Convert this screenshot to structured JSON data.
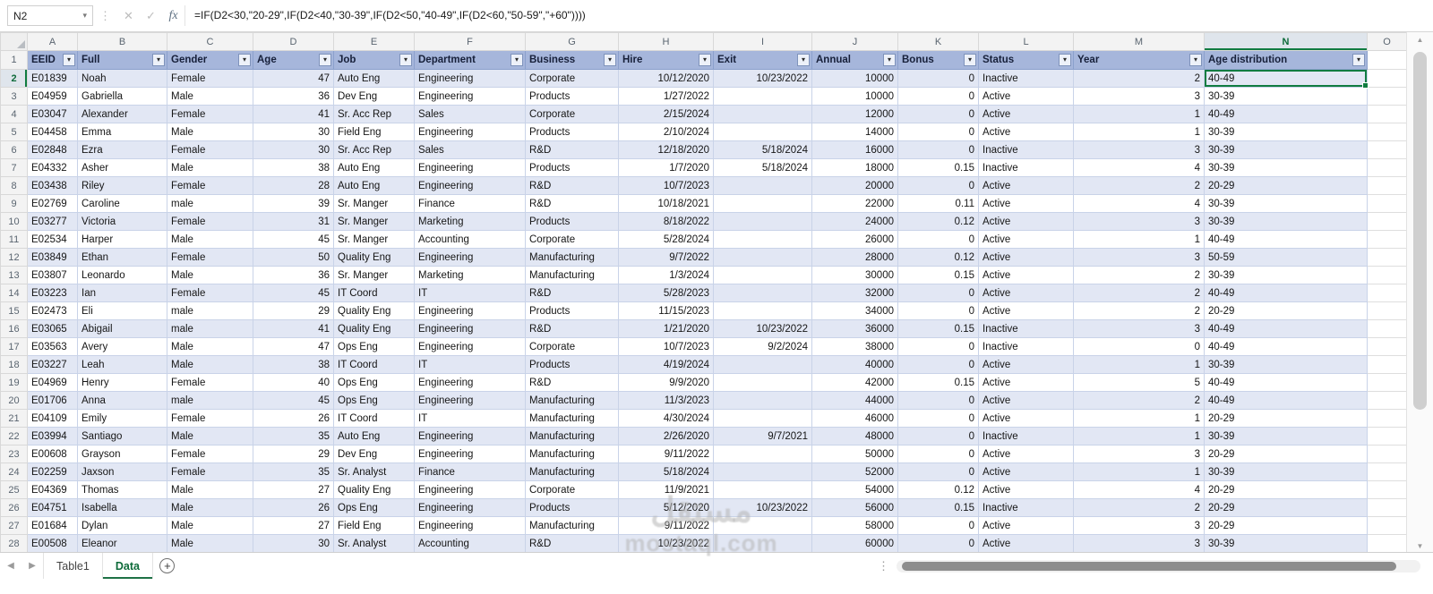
{
  "formula_bar": {
    "name_box": "N2",
    "fx_label": "fx",
    "cancel_glyph": "✕",
    "enter_glyph": "✓",
    "formula": "=IF(D2<30,\"20-29\",IF(D2<40,\"30-39\",IF(D2<50,\"40-49\",IF(D2<60,\"50-59\",\"+60\"))))"
  },
  "grid": {
    "column_letters": [
      "A",
      "B",
      "C",
      "D",
      "E",
      "F",
      "G",
      "H",
      "I",
      "J",
      "K",
      "L",
      "M",
      "N",
      "O"
    ],
    "selected_cell": {
      "ref": "N2",
      "column": "N",
      "row": 2
    },
    "header_row": [
      "EEID",
      "Full",
      "Gender",
      "Age",
      "Job",
      "Department",
      "Business",
      "Hire",
      "Exit",
      "Annual",
      "Bonus",
      "Status",
      "Year",
      "Age distribution"
    ],
    "rows": [
      {
        "n": 2,
        "cells": [
          "E01839",
          "Noah",
          "Female",
          "47",
          "Auto Eng",
          "Engineering",
          "Corporate",
          "10/12/2020",
          "10/23/2022",
          "10000",
          "0",
          "Inactive",
          "2",
          "40-49"
        ]
      },
      {
        "n": 3,
        "cells": [
          "E04959",
          "Gabriella",
          "Male",
          "36",
          "Dev Eng",
          "Engineering",
          "Products",
          "1/27/2022",
          "",
          "10000",
          "0",
          "Active",
          "3",
          "30-39"
        ]
      },
      {
        "n": 4,
        "cells": [
          "E03047",
          "Alexander",
          "Female",
          "41",
          "Sr. Acc Rep",
          "Sales",
          "Corporate",
          "2/15/2024",
          "",
          "12000",
          "0",
          "Active",
          "1",
          "40-49"
        ]
      },
      {
        "n": 5,
        "cells": [
          "E04458",
          "Emma",
          "Male",
          "30",
          "Field Eng",
          "Engineering",
          "Products",
          "2/10/2024",
          "",
          "14000",
          "0",
          "Active",
          "1",
          "30-39"
        ]
      },
      {
        "n": 6,
        "cells": [
          "E02848",
          "Ezra",
          "Female",
          "30",
          "Sr. Acc Rep",
          "Sales",
          "R&D",
          "12/18/2020",
          "5/18/2024",
          "16000",
          "0",
          "Inactive",
          "3",
          "30-39"
        ]
      },
      {
        "n": 7,
        "cells": [
          "E04332",
          "Asher",
          "Male",
          "38",
          "Auto Eng",
          "Engineering",
          "Products",
          "1/7/2020",
          "5/18/2024",
          "18000",
          "0.15",
          "Inactive",
          "4",
          "30-39"
        ]
      },
      {
        "n": 8,
        "cells": [
          "E03438",
          "Riley",
          "Female",
          "28",
          "Auto Eng",
          "Engineering",
          "R&D",
          "10/7/2023",
          "",
          "20000",
          "0",
          "Active",
          "2",
          "20-29"
        ]
      },
      {
        "n": 9,
        "cells": [
          "E02769",
          "Caroline",
          "male",
          "39",
          "Sr. Manger",
          "Finance",
          "R&D",
          "10/18/2021",
          "",
          "22000",
          "0.11",
          "Active",
          "4",
          "30-39"
        ]
      },
      {
        "n": 10,
        "cells": [
          "E03277",
          "Victoria",
          "Female",
          "31",
          "Sr. Manger",
          "Marketing",
          "Products",
          "8/18/2022",
          "",
          "24000",
          "0.12",
          "Active",
          "3",
          "30-39"
        ]
      },
      {
        "n": 11,
        "cells": [
          "E02534",
          "Harper",
          "Male",
          "45",
          "Sr. Manger",
          "Accounting",
          "Corporate",
          "5/28/2024",
          "",
          "26000",
          "0",
          "Active",
          "1",
          "40-49"
        ]
      },
      {
        "n": 12,
        "cells": [
          "E03849",
          "Ethan",
          "Female",
          "50",
          "Quality Eng",
          "Engineering",
          "Manufacturing",
          "9/7/2022",
          "",
          "28000",
          "0.12",
          "Active",
          "3",
          "50-59"
        ]
      },
      {
        "n": 13,
        "cells": [
          "E03807",
          "Leonardo",
          "Male",
          "36",
          "Sr. Manger",
          "Marketing",
          "Manufacturing",
          "1/3/2024",
          "",
          "30000",
          "0.15",
          "Active",
          "2",
          "30-39"
        ]
      },
      {
        "n": 14,
        "cells": [
          "E03223",
          "Ian",
          "Female",
          "45",
          "IT Coord",
          "IT",
          "R&D",
          "5/28/2023",
          "",
          "32000",
          "0",
          "Active",
          "2",
          "40-49"
        ]
      },
      {
        "n": 15,
        "cells": [
          "E02473",
          "Eli",
          "male",
          "29",
          "Quality Eng",
          "Engineering",
          "Products",
          "11/15/2023",
          "",
          "34000",
          "0",
          "Active",
          "2",
          "20-29"
        ]
      },
      {
        "n": 16,
        "cells": [
          "E03065",
          "Abigail",
          "male",
          "41",
          "Quality Eng",
          "Engineering",
          "R&D",
          "1/21/2020",
          "10/23/2022",
          "36000",
          "0.15",
          "Inactive",
          "3",
          "40-49"
        ]
      },
      {
        "n": 17,
        "cells": [
          "E03563",
          "Avery",
          "Male",
          "47",
          "Ops Eng",
          "Engineering",
          "Corporate",
          "10/7/2023",
          "9/2/2024",
          "38000",
          "0",
          "Inactive",
          "0",
          "40-49"
        ]
      },
      {
        "n": 18,
        "cells": [
          "E03227",
          "Leah",
          "Male",
          "38",
          "IT Coord",
          "IT",
          "Products",
          "4/19/2024",
          "",
          "40000",
          "0",
          "Active",
          "1",
          "30-39"
        ]
      },
      {
        "n": 19,
        "cells": [
          "E04969",
          "Henry",
          "Female",
          "40",
          "Ops Eng",
          "Engineering",
          "R&D",
          "9/9/2020",
          "",
          "42000",
          "0.15",
          "Active",
          "5",
          "40-49"
        ]
      },
      {
        "n": 20,
        "cells": [
          "E01706",
          "Anna",
          "male",
          "45",
          "Ops Eng",
          "Engineering",
          "Manufacturing",
          "11/3/2023",
          "",
          "44000",
          "0",
          "Active",
          "2",
          "40-49"
        ]
      },
      {
        "n": 21,
        "cells": [
          "E04109",
          "Emily",
          "Female",
          "26",
          "IT Coord",
          "IT",
          "Manufacturing",
          "4/30/2024",
          "",
          "46000",
          "0",
          "Active",
          "1",
          "20-29"
        ]
      },
      {
        "n": 22,
        "cells": [
          "E03994",
          "Santiago",
          "Male",
          "35",
          "Auto Eng",
          "Engineering",
          "Manufacturing",
          "2/26/2020",
          "9/7/2021",
          "48000",
          "0",
          "Inactive",
          "1",
          "30-39"
        ]
      },
      {
        "n": 23,
        "cells": [
          "E00608",
          "Grayson",
          "Female",
          "29",
          "Dev Eng",
          "Engineering",
          "Manufacturing",
          "9/11/2022",
          "",
          "50000",
          "0",
          "Active",
          "3",
          "20-29"
        ]
      },
      {
        "n": 24,
        "cells": [
          "E02259",
          "Jaxson",
          "Female",
          "35",
          "Sr. Analyst",
          "Finance",
          "Manufacturing",
          "5/18/2024",
          "",
          "52000",
          "0",
          "Active",
          "1",
          "30-39"
        ]
      },
      {
        "n": 25,
        "cells": [
          "E04369",
          "Thomas",
          "Male",
          "27",
          "Quality Eng",
          "Engineering",
          "Corporate",
          "11/9/2021",
          "",
          "54000",
          "0.12",
          "Active",
          "4",
          "20-29"
        ]
      },
      {
        "n": 26,
        "cells": [
          "E04751",
          "Isabella",
          "Male",
          "26",
          "Ops Eng",
          "Engineering",
          "Products",
          "5/12/2020",
          "10/23/2022",
          "56000",
          "0.15",
          "Inactive",
          "2",
          "20-29"
        ]
      },
      {
        "n": 27,
        "cells": [
          "E01684",
          "Dylan",
          "Male",
          "27",
          "Field Eng",
          "Engineering",
          "Manufacturing",
          "9/11/2022",
          "",
          "58000",
          "0",
          "Active",
          "3",
          "20-29"
        ]
      },
      {
        "n": 28,
        "cells": [
          "E00508",
          "Eleanor",
          "Male",
          "30",
          "Sr. Analyst",
          "Accounting",
          "R&D",
          "10/23/2022",
          "",
          "60000",
          "0",
          "Active",
          "3",
          "30-39"
        ]
      }
    ]
  },
  "sheet_tabs": {
    "tabs": [
      {
        "label": "Table1",
        "active": false
      },
      {
        "label": "Data",
        "active": true
      }
    ]
  },
  "watermark": {
    "logo": "مستقل",
    "text": "mostaql.com"
  },
  "colors": {
    "table_header_fill": "#a6b6db",
    "band_fill": "#e2e7f4",
    "selection_green": "#107c41"
  }
}
